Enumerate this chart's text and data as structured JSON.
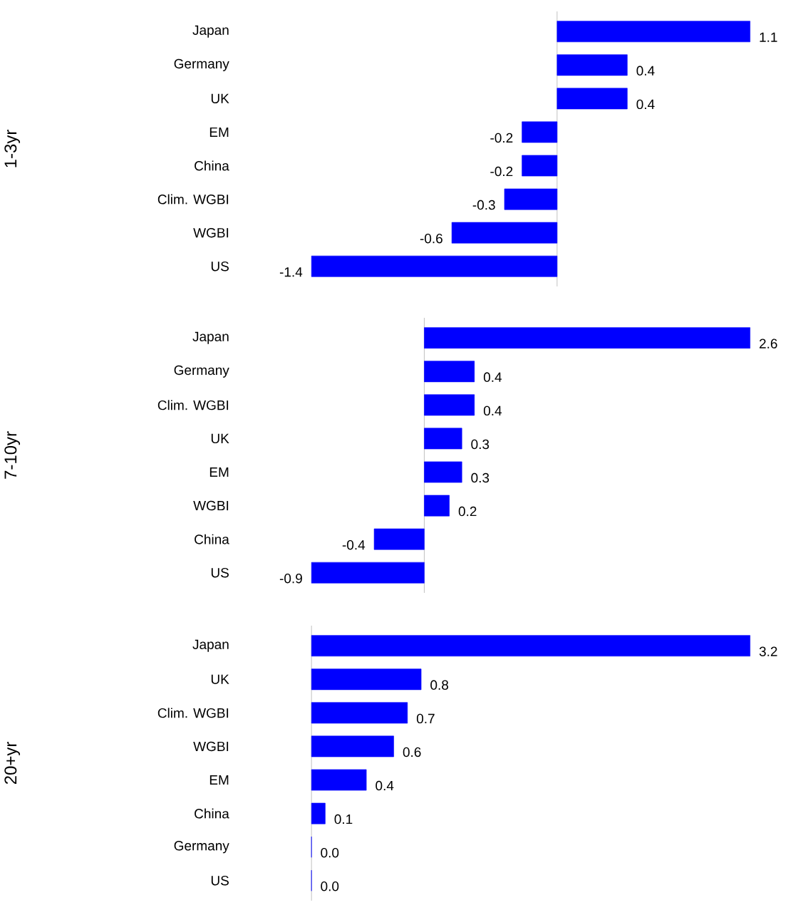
{
  "chart_data": [
    {
      "type": "bar",
      "orientation": "horizontal",
      "ylabel": "1-3yr",
      "color": "#0000ff",
      "categories": [
        "Japan",
        "Germany",
        "UK",
        "EM",
        "China",
        "Clim. WGBI",
        "WGBI",
        "US"
      ],
      "values": [
        1.1,
        0.4,
        0.4,
        -0.2,
        -0.2,
        -0.3,
        -0.6,
        -1.4
      ],
      "value_labels": [
        "1.1",
        "0.4",
        "0.4",
        "-0.2",
        "-0.2",
        "-0.3",
        "-0.6",
        "-1.4"
      ]
    },
    {
      "type": "bar",
      "orientation": "horizontal",
      "ylabel": "7-10yr",
      "color": "#0000ff",
      "categories": [
        "Japan",
        "Germany",
        "Clim. WGBI",
        "UK",
        "EM",
        "WGBI",
        "China",
        "US"
      ],
      "values": [
        2.6,
        0.4,
        0.4,
        0.3,
        0.3,
        0.2,
        -0.4,
        -0.9
      ],
      "value_labels": [
        "2.6",
        "0.4",
        "0.4",
        "0.3",
        "0.3",
        "0.2",
        "-0.4",
        "-0.9"
      ]
    },
    {
      "type": "bar",
      "orientation": "horizontal",
      "ylabel": "20+yr",
      "color": "#0000ff",
      "categories": [
        "Japan",
        "UK",
        "Clim. WGBI",
        "WGBI",
        "EM",
        "China",
        "Germany",
        "US"
      ],
      "values": [
        3.2,
        0.8,
        0.7,
        0.6,
        0.4,
        0.1,
        0.0,
        0.0
      ],
      "value_labels": [
        "3.2",
        "0.8",
        "0.7",
        "0.6",
        "0.4",
        "0.1",
        "0.0",
        "0.0"
      ]
    }
  ]
}
